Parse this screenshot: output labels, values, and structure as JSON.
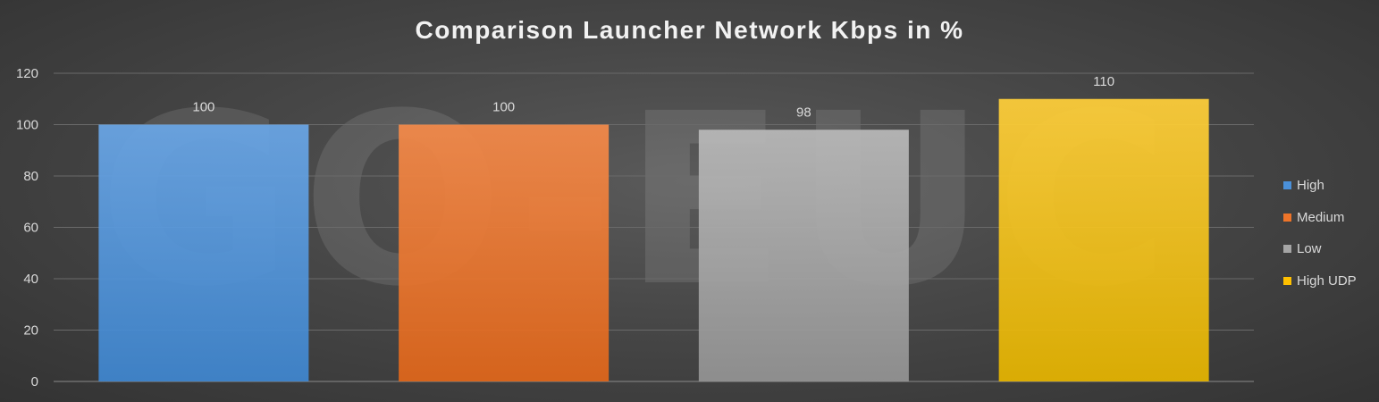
{
  "chart_data": {
    "type": "bar",
    "title": "Comparison Launcher Network Kbps in %",
    "watermark": "GO-EUC",
    "categories": [
      "High",
      "Medium",
      "Low",
      "High UDP"
    ],
    "values": [
      100,
      100,
      98,
      110
    ],
    "data_labels": [
      "100",
      "100",
      "98",
      "110"
    ],
    "colors": [
      "#4a90d9",
      "#ee7429",
      "#a5a5a5",
      "#ffc000"
    ],
    "ylim": [
      0,
      120
    ],
    "yticks": [
      0,
      20,
      40,
      60,
      80,
      100,
      120
    ],
    "ytick_labels": [
      "0",
      "20",
      "40",
      "60",
      "80",
      "100",
      "120"
    ],
    "xlabel": "",
    "ylabel": "",
    "grid": true,
    "legend_position": "right",
    "legend": [
      {
        "label": "High",
        "color": "#4a90d9"
      },
      {
        "label": "Medium",
        "color": "#ee7429"
      },
      {
        "label": "Low",
        "color": "#a5a5a5"
      },
      {
        "label": "High UDP",
        "color": "#ffc000"
      }
    ]
  }
}
